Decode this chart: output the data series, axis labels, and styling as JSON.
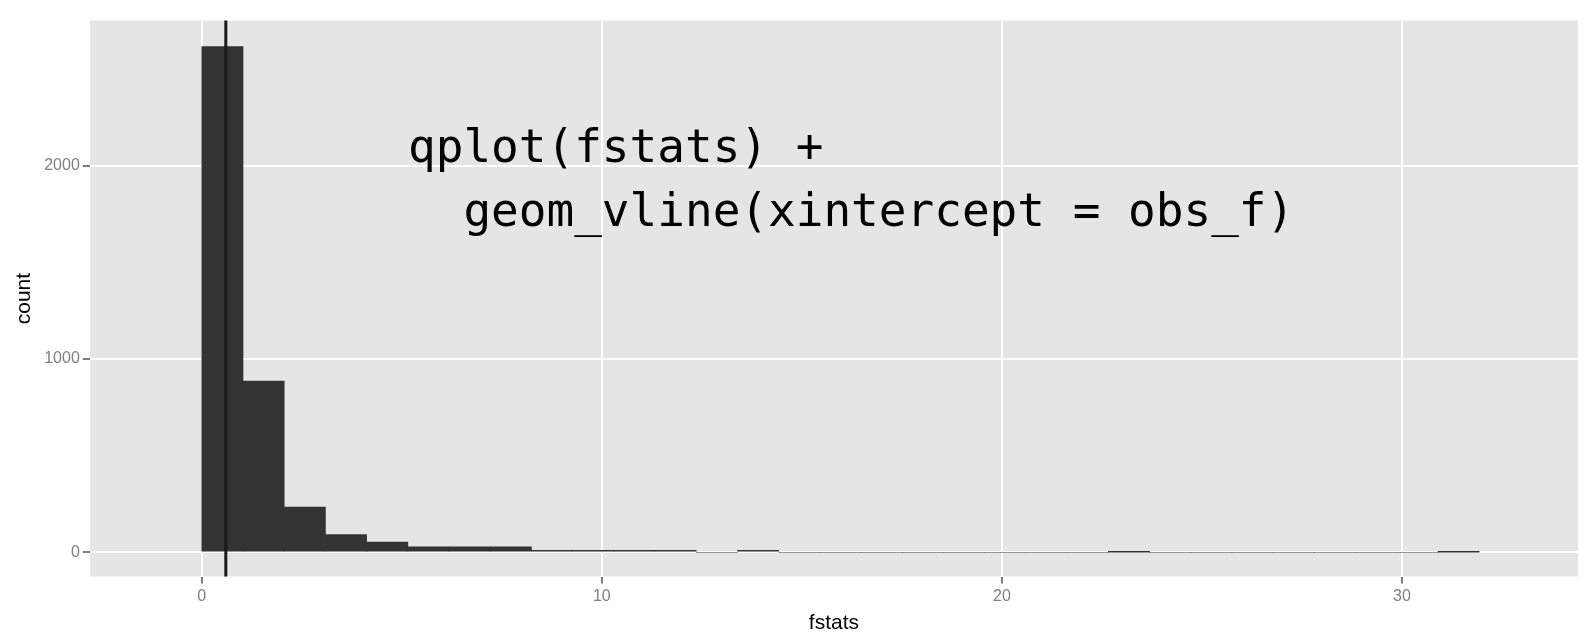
{
  "chart_data": {
    "type": "histogram",
    "xlabel": "fstats",
    "ylabel": "count",
    "bins": [
      0,
      1.03,
      2.06,
      3.09,
      4.12,
      5.15,
      6.18,
      7.21,
      8.24,
      9.27,
      10.3,
      11.33,
      12.36,
      13.39,
      14.42,
      15.45,
      16.48,
      17.51,
      18.54,
      19.57,
      20.6,
      21.63,
      22.66,
      23.69,
      24.72,
      25.75,
      26.78,
      27.81,
      28.84,
      29.87,
      30.9,
      31.93
    ],
    "values": [
      2615,
      885,
      233,
      92,
      53,
      28,
      28,
      28,
      10,
      10,
      10,
      10,
      0,
      10,
      0,
      0,
      0,
      0,
      0,
      0,
      0,
      0,
      1,
      0,
      0,
      0,
      0,
      0,
      0,
      0,
      1
    ],
    "color": "#333333",
    "xlim": [
      -2.8,
      34.4
    ],
    "xticks": [
      0,
      10,
      20,
      30
    ],
    "ylim": [
      -126,
      2750
    ],
    "yticks": [
      0,
      1000,
      2000
    ],
    "grid": true,
    "legend": false,
    "ref_lines": [
      {
        "axis": "x",
        "value": 0.6,
        "color": "#1a1a1a"
      }
    ],
    "annotations": [
      "qplot(fstats) +",
      "  geom_vline(xintercept = obs_f)"
    ]
  }
}
